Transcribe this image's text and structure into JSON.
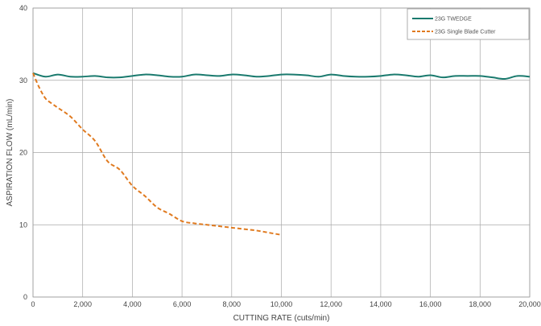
{
  "chart_data": {
    "type": "line",
    "xlabel": "CUTTING RATE (cuts/min)",
    "ylabel": "ASPIRATION FLOW (mL/min)",
    "xlim": [
      0,
      20000
    ],
    "ylim": [
      0,
      40
    ],
    "x_ticks": [
      "0",
      "2,000",
      "4,000",
      "6,000",
      "8,000",
      "10,000",
      "12,000",
      "14,000",
      "16,000",
      "18,000",
      "20,000"
    ],
    "y_ticks": [
      "0",
      "10",
      "20",
      "30",
      "40"
    ],
    "grid": true,
    "legend_position": "top-right",
    "series": [
      {
        "name": "23G TWEDGE",
        "color": "#1a7a6e",
        "style": "solid",
        "x": [
          0,
          500,
          1000,
          1500,
          2000,
          2500,
          3000,
          3500,
          4000,
          4500,
          5000,
          5500,
          6000,
          6500,
          7000,
          7500,
          8000,
          8500,
          9000,
          9500,
          10000,
          10500,
          11000,
          11500,
          12000,
          12500,
          13000,
          13500,
          14000,
          14500,
          15000,
          15500,
          16000,
          16500,
          17000,
          17500,
          18000,
          18500,
          19000,
          19500,
          20000
        ],
        "y": [
          31.0,
          30.5,
          30.8,
          30.5,
          30.5,
          30.6,
          30.4,
          30.4,
          30.6,
          30.8,
          30.7,
          30.5,
          30.5,
          30.8,
          30.7,
          30.6,
          30.8,
          30.7,
          30.5,
          30.6,
          30.8,
          30.8,
          30.7,
          30.5,
          30.8,
          30.6,
          30.5,
          30.5,
          30.6,
          30.8,
          30.7,
          30.5,
          30.7,
          30.4,
          30.6,
          30.6,
          30.6,
          30.4,
          30.2,
          30.6,
          30.5
        ]
      },
      {
        "name": "23G Single Blade Cutter",
        "color": "#e07a1f",
        "style": "dashed",
        "x": [
          0,
          250,
          500,
          750,
          1000,
          1500,
          2000,
          2500,
          3000,
          3500,
          4000,
          4500,
          5000,
          5500,
          6000,
          6500,
          7000,
          7500,
          8000,
          8500,
          9000,
          9500,
          10000
        ],
        "y": [
          31.0,
          29.0,
          27.5,
          26.8,
          26.2,
          25.0,
          23.2,
          21.6,
          18.8,
          17.6,
          15.4,
          14.0,
          12.4,
          11.5,
          10.5,
          10.2,
          10.0,
          9.8,
          9.6,
          9.4,
          9.2,
          8.9,
          8.6
        ]
      }
    ]
  }
}
